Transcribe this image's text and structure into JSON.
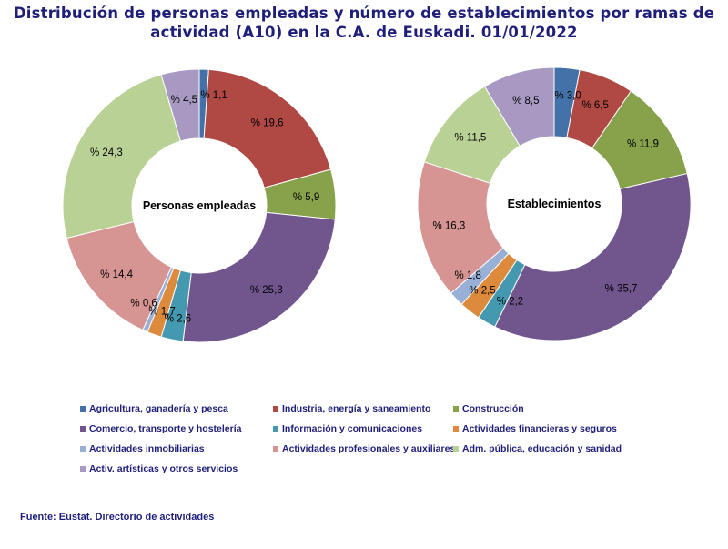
{
  "title_line1": "Distribución de personas empleadas y número de establecimientos por ramas de",
  "title_line2": "actividad (A10) en la C.A. de Euskadi. 01/01/2022",
  "source": "Fuente: Eustat. Directorio de actividades",
  "categories": [
    {
      "name": "Agricultura, ganadería y pesca",
      "color": "#4472a8"
    },
    {
      "name": "Industria, energía y saneamiento",
      "color": "#b04844"
    },
    {
      "name": "Construcción",
      "color": "#87a24a"
    },
    {
      "name": "Comercio, transporte y hostelería",
      "color": "#71568e"
    },
    {
      "name": "Información y comunicaciones",
      "color": "#4499b0"
    },
    {
      "name": "Actividades financieras y seguros",
      "color": "#de8a3c"
    },
    {
      "name": "Actividades inmobiliarias",
      "color": "#98afd6"
    },
    {
      "name": "Actividades profesionales y auxiliares",
      "color": "#d69493"
    },
    {
      "name": "Adm. pública, educación y sanidad",
      "color": "#b9d194"
    },
    {
      "name": "Activ. artísticas y otros servicios",
      "color": "#a899c2"
    }
  ],
  "chart_data": [
    {
      "type": "pie",
      "title": "Personas empleadas",
      "values": [
        1.1,
        19.6,
        5.9,
        25.3,
        2.6,
        1.7,
        0.6,
        14.4,
        24.3,
        4.5
      ],
      "labels": [
        "% 1,1",
        "% 19,6",
        "% 5,9",
        "% 25,3",
        "% 2,6",
        "% 1,7",
        "% 0,6",
        "% 14,4",
        "% 24,3",
        "% 4,5"
      ]
    },
    {
      "type": "pie",
      "title": "Establecimientos",
      "values": [
        3.0,
        6.5,
        11.9,
        35.7,
        2.2,
        2.5,
        1.8,
        16.3,
        11.5,
        8.5
      ],
      "labels": [
        "% 3,0",
        "% 6,5",
        "% 11,9",
        "% 35,7",
        "% 2,2",
        "% 2,5",
        "% 1,8",
        "% 16,3",
        "% 11,5",
        "% 8,5"
      ]
    }
  ]
}
